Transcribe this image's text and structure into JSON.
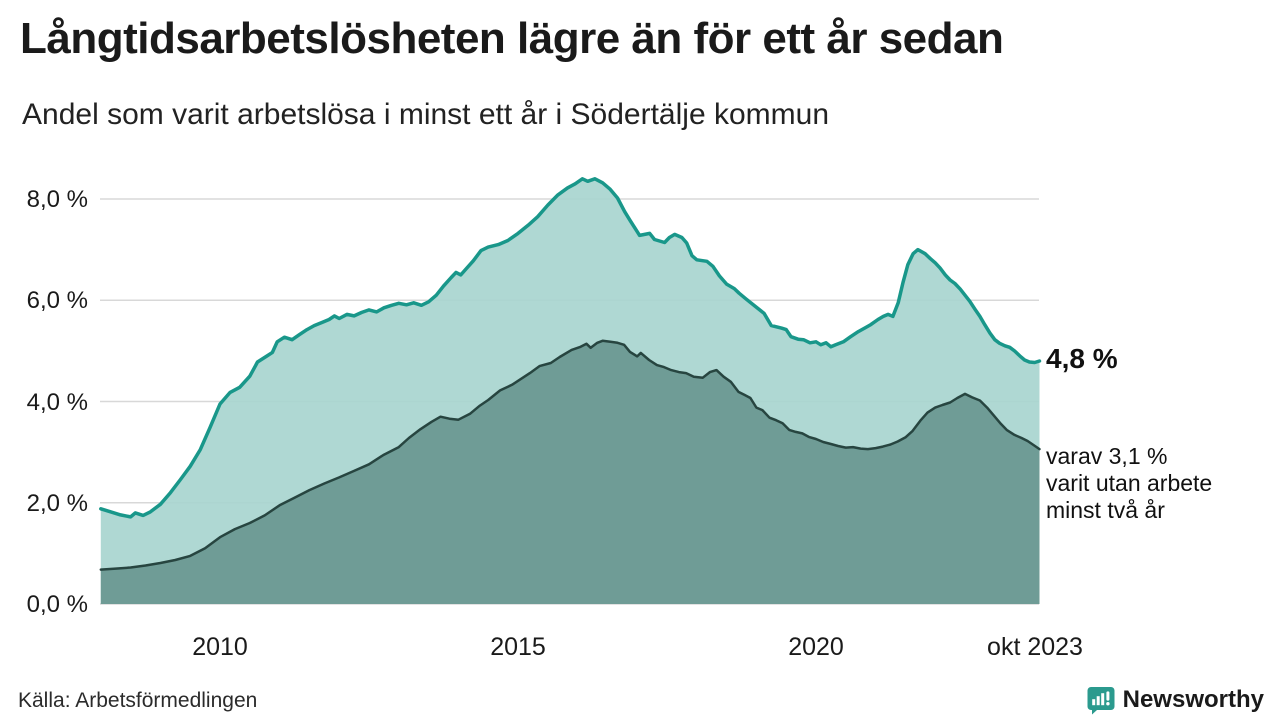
{
  "header": {
    "title": "Långtidsarbetslösheten lägre än för ett år sedan",
    "subtitle": "Andel som varit arbetslösa i minst ett år i Södertälje kommun"
  },
  "annotations": {
    "end_value_label": "4,8 %",
    "sub_lines": [
      "varav 3,1 %",
      "varit utan arbete",
      "minst två år"
    ]
  },
  "footer": {
    "source": "Källa: Arbetsförmedlingen",
    "brand": "Newsworthy"
  },
  "colors": {
    "grid": "#d8d8d8",
    "text": "#1a1a1a",
    "brand_teal": "#2b9a8e"
  },
  "chart_data": {
    "type": "area",
    "title": "Långtidsarbetslösheten lägre än för ett år sedan",
    "subtitle": "Andel som varit arbetslösa i minst ett år i Södertälje kommun",
    "unit": "%",
    "x_axis": {
      "min": 2008.0,
      "max": 2023.75,
      "ticks": [
        {
          "year": 2010,
          "label": "2010"
        },
        {
          "year": 2015,
          "label": "2015"
        },
        {
          "year": 2020,
          "label": "2020"
        },
        {
          "year": 2023.75,
          "label": "okt 2023"
        }
      ]
    },
    "y_axis": {
      "min": 0,
      "max": 8.58,
      "grid": true,
      "ticks": [
        {
          "value": 0,
          "label": "0,0 %"
        },
        {
          "value": 2,
          "label": "2,0 %"
        },
        {
          "value": 4,
          "label": "4,0 %"
        },
        {
          "value": 6,
          "label": "6,0 %"
        },
        {
          "value": 8,
          "label": "8,0 %"
        }
      ]
    },
    "series": [
      {
        "name": "Arbetslösa minst ett år",
        "end_label": "4,8 %",
        "line_color": "#19978a",
        "fill_color": "#a8d5cf",
        "fill_opacity": 0.92,
        "line_width": 3.5,
        "points": [
          [
            2008.0,
            1.88
          ],
          [
            2008.17,
            1.82
          ],
          [
            2008.33,
            1.76
          ],
          [
            2008.5,
            1.72
          ],
          [
            2008.58,
            1.8
          ],
          [
            2008.71,
            1.75
          ],
          [
            2008.83,
            1.82
          ],
          [
            2009.0,
            1.97
          ],
          [
            2009.17,
            2.2
          ],
          [
            2009.33,
            2.45
          ],
          [
            2009.5,
            2.72
          ],
          [
            2009.67,
            3.05
          ],
          [
            2009.83,
            3.48
          ],
          [
            2010.0,
            3.95
          ],
          [
            2010.17,
            4.18
          ],
          [
            2010.33,
            4.28
          ],
          [
            2010.5,
            4.5
          ],
          [
            2010.63,
            4.78
          ],
          [
            2010.79,
            4.9
          ],
          [
            2010.88,
            4.97
          ],
          [
            2010.96,
            5.18
          ],
          [
            2011.08,
            5.27
          ],
          [
            2011.21,
            5.22
          ],
          [
            2011.33,
            5.32
          ],
          [
            2011.46,
            5.42
          ],
          [
            2011.58,
            5.5
          ],
          [
            2011.71,
            5.56
          ],
          [
            2011.83,
            5.62
          ],
          [
            2011.92,
            5.69
          ],
          [
            2012.0,
            5.64
          ],
          [
            2012.13,
            5.72
          ],
          [
            2012.25,
            5.69
          ],
          [
            2012.38,
            5.76
          ],
          [
            2012.5,
            5.81
          ],
          [
            2012.63,
            5.77
          ],
          [
            2012.75,
            5.85
          ],
          [
            2012.88,
            5.9
          ],
          [
            2013.0,
            5.94
          ],
          [
            2013.13,
            5.91
          ],
          [
            2013.25,
            5.95
          ],
          [
            2013.38,
            5.9
          ],
          [
            2013.5,
            5.97
          ],
          [
            2013.63,
            6.1
          ],
          [
            2013.75,
            6.28
          ],
          [
            2013.88,
            6.45
          ],
          [
            2013.96,
            6.55
          ],
          [
            2014.04,
            6.5
          ],
          [
            2014.13,
            6.62
          ],
          [
            2014.25,
            6.78
          ],
          [
            2014.38,
            6.98
          ],
          [
            2014.5,
            7.05
          ],
          [
            2014.67,
            7.1
          ],
          [
            2014.83,
            7.18
          ],
          [
            2015.0,
            7.32
          ],
          [
            2015.17,
            7.48
          ],
          [
            2015.33,
            7.65
          ],
          [
            2015.5,
            7.88
          ],
          [
            2015.67,
            8.08
          ],
          [
            2015.83,
            8.22
          ],
          [
            2015.96,
            8.3
          ],
          [
            2016.08,
            8.4
          ],
          [
            2016.17,
            8.35
          ],
          [
            2016.29,
            8.4
          ],
          [
            2016.42,
            8.32
          ],
          [
            2016.54,
            8.2
          ],
          [
            2016.67,
            8.02
          ],
          [
            2016.79,
            7.75
          ],
          [
            2016.88,
            7.58
          ],
          [
            2017.04,
            7.28
          ],
          [
            2017.21,
            7.32
          ],
          [
            2017.29,
            7.2
          ],
          [
            2017.46,
            7.14
          ],
          [
            2017.54,
            7.24
          ],
          [
            2017.63,
            7.3
          ],
          [
            2017.75,
            7.24
          ],
          [
            2017.83,
            7.13
          ],
          [
            2017.92,
            6.88
          ],
          [
            2018.0,
            6.8
          ],
          [
            2018.17,
            6.77
          ],
          [
            2018.27,
            6.67
          ],
          [
            2018.38,
            6.48
          ],
          [
            2018.5,
            6.32
          ],
          [
            2018.63,
            6.23
          ],
          [
            2018.71,
            6.14
          ],
          [
            2018.83,
            6.02
          ],
          [
            2019.0,
            5.86
          ],
          [
            2019.13,
            5.74
          ],
          [
            2019.25,
            5.5
          ],
          [
            2019.42,
            5.45
          ],
          [
            2019.5,
            5.42
          ],
          [
            2019.58,
            5.28
          ],
          [
            2019.7,
            5.23
          ],
          [
            2019.79,
            5.22
          ],
          [
            2019.9,
            5.16
          ],
          [
            2020.0,
            5.18
          ],
          [
            2020.08,
            5.12
          ],
          [
            2020.17,
            5.16
          ],
          [
            2020.25,
            5.08
          ],
          [
            2020.33,
            5.12
          ],
          [
            2020.46,
            5.18
          ],
          [
            2020.58,
            5.28
          ],
          [
            2020.71,
            5.38
          ],
          [
            2020.83,
            5.46
          ],
          [
            2020.92,
            5.52
          ],
          [
            2021.04,
            5.62
          ],
          [
            2021.13,
            5.68
          ],
          [
            2021.21,
            5.72
          ],
          [
            2021.29,
            5.68
          ],
          [
            2021.38,
            5.95
          ],
          [
            2021.46,
            6.35
          ],
          [
            2021.54,
            6.7
          ],
          [
            2021.63,
            6.92
          ],
          [
            2021.71,
            7.0
          ],
          [
            2021.83,
            6.92
          ],
          [
            2021.92,
            6.82
          ],
          [
            2022.0,
            6.74
          ],
          [
            2022.08,
            6.64
          ],
          [
            2022.17,
            6.5
          ],
          [
            2022.25,
            6.4
          ],
          [
            2022.33,
            6.33
          ],
          [
            2022.42,
            6.22
          ],
          [
            2022.5,
            6.1
          ],
          [
            2022.58,
            5.98
          ],
          [
            2022.67,
            5.82
          ],
          [
            2022.75,
            5.68
          ],
          [
            2022.83,
            5.52
          ],
          [
            2022.92,
            5.35
          ],
          [
            2023.0,
            5.22
          ],
          [
            2023.08,
            5.15
          ],
          [
            2023.17,
            5.1
          ],
          [
            2023.25,
            5.07
          ],
          [
            2023.33,
            5.0
          ],
          [
            2023.42,
            4.9
          ],
          [
            2023.5,
            4.82
          ],
          [
            2023.58,
            4.78
          ],
          [
            2023.67,
            4.77
          ],
          [
            2023.75,
            4.8
          ]
        ]
      },
      {
        "name": "Arbetslösa minst två år",
        "end_label": "varav 3,1 % varit utan arbete minst två år",
        "line_color": "#274540",
        "fill_color": "#6f9c96",
        "fill_opacity": 1,
        "line_width": 2.5,
        "points": [
          [
            2008.0,
            0.68
          ],
          [
            2008.25,
            0.7
          ],
          [
            2008.5,
            0.72
          ],
          [
            2008.75,
            0.76
          ],
          [
            2009.0,
            0.81
          ],
          [
            2009.25,
            0.87
          ],
          [
            2009.5,
            0.95
          ],
          [
            2009.75,
            1.1
          ],
          [
            2010.0,
            1.32
          ],
          [
            2010.25,
            1.48
          ],
          [
            2010.5,
            1.6
          ],
          [
            2010.75,
            1.75
          ],
          [
            2011.0,
            1.95
          ],
          [
            2011.25,
            2.1
          ],
          [
            2011.5,
            2.25
          ],
          [
            2011.75,
            2.38
          ],
          [
            2012.0,
            2.5
          ],
          [
            2012.25,
            2.63
          ],
          [
            2012.5,
            2.76
          ],
          [
            2012.75,
            2.95
          ],
          [
            2013.0,
            3.1
          ],
          [
            2013.17,
            3.28
          ],
          [
            2013.36,
            3.45
          ],
          [
            2013.55,
            3.6
          ],
          [
            2013.7,
            3.7
          ],
          [
            2013.85,
            3.66
          ],
          [
            2014.0,
            3.64
          ],
          [
            2014.2,
            3.76
          ],
          [
            2014.36,
            3.92
          ],
          [
            2014.5,
            4.03
          ],
          [
            2014.7,
            4.22
          ],
          [
            2014.9,
            4.33
          ],
          [
            2015.03,
            4.43
          ],
          [
            2015.2,
            4.56
          ],
          [
            2015.36,
            4.7
          ],
          [
            2015.55,
            4.76
          ],
          [
            2015.7,
            4.88
          ],
          [
            2015.9,
            5.02
          ],
          [
            2016.05,
            5.08
          ],
          [
            2016.15,
            5.14
          ],
          [
            2016.22,
            5.06
          ],
          [
            2016.33,
            5.16
          ],
          [
            2016.42,
            5.2
          ],
          [
            2016.55,
            5.18
          ],
          [
            2016.67,
            5.16
          ],
          [
            2016.78,
            5.12
          ],
          [
            2016.88,
            4.98
          ],
          [
            2017.0,
            4.89
          ],
          [
            2017.06,
            4.96
          ],
          [
            2017.2,
            4.82
          ],
          [
            2017.33,
            4.72
          ],
          [
            2017.45,
            4.68
          ],
          [
            2017.57,
            4.62
          ],
          [
            2017.7,
            4.58
          ],
          [
            2017.82,
            4.56
          ],
          [
            2017.95,
            4.49
          ],
          [
            2018.1,
            4.47
          ],
          [
            2018.22,
            4.58
          ],
          [
            2018.33,
            4.62
          ],
          [
            2018.45,
            4.49
          ],
          [
            2018.57,
            4.39
          ],
          [
            2018.7,
            4.19
          ],
          [
            2018.8,
            4.13
          ],
          [
            2018.9,
            4.07
          ],
          [
            2019.0,
            3.88
          ],
          [
            2019.1,
            3.83
          ],
          [
            2019.22,
            3.68
          ],
          [
            2019.33,
            3.63
          ],
          [
            2019.44,
            3.57
          ],
          [
            2019.55,
            3.44
          ],
          [
            2019.66,
            3.4
          ],
          [
            2019.77,
            3.37
          ],
          [
            2019.88,
            3.3
          ],
          [
            2020.0,
            3.26
          ],
          [
            2020.12,
            3.2
          ],
          [
            2020.25,
            3.16
          ],
          [
            2020.37,
            3.12
          ],
          [
            2020.5,
            3.09
          ],
          [
            2020.62,
            3.1
          ],
          [
            2020.75,
            3.07
          ],
          [
            2020.87,
            3.06
          ],
          [
            2021.0,
            3.08
          ],
          [
            2021.12,
            3.11
          ],
          [
            2021.25,
            3.15
          ],
          [
            2021.37,
            3.21
          ],
          [
            2021.5,
            3.29
          ],
          [
            2021.62,
            3.42
          ],
          [
            2021.75,
            3.62
          ],
          [
            2021.87,
            3.78
          ],
          [
            2022.0,
            3.88
          ],
          [
            2022.12,
            3.93
          ],
          [
            2022.25,
            3.98
          ],
          [
            2022.37,
            4.07
          ],
          [
            2022.5,
            4.15
          ],
          [
            2022.62,
            4.08
          ],
          [
            2022.75,
            4.02
          ],
          [
            2022.87,
            3.88
          ],
          [
            2023.0,
            3.7
          ],
          [
            2023.1,
            3.56
          ],
          [
            2023.2,
            3.44
          ],
          [
            2023.33,
            3.34
          ],
          [
            2023.45,
            3.28
          ],
          [
            2023.55,
            3.22
          ],
          [
            2023.65,
            3.14
          ],
          [
            2023.75,
            3.06
          ]
        ]
      }
    ]
  }
}
